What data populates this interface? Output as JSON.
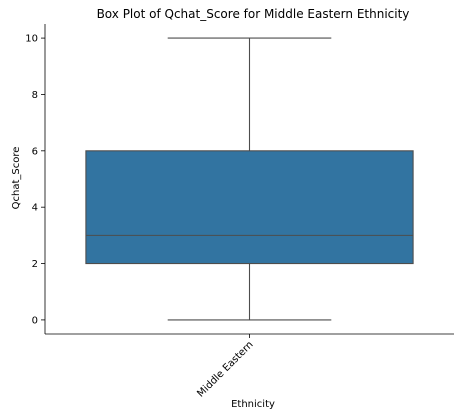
{
  "chart_data": {
    "type": "box",
    "title": "Box Plot of Qchat_Score for Middle Eastern Ethnicity",
    "xlabel": "Ethnicity",
    "ylabel": "Qchat_Score",
    "categories": [
      "Middle Eastern"
    ],
    "boxes": [
      {
        "category": "Middle Eastern",
        "whisker_low": 0,
        "q1": 2,
        "median": 3,
        "q3": 6,
        "whisker_high": 10
      }
    ],
    "ylim": [
      -0.5,
      10.5
    ],
    "yticks": [
      0,
      2,
      4,
      6,
      8,
      10
    ],
    "box_color": "#3274a1",
    "line_color": "#4d4d4d",
    "grid": false,
    "legend": "none"
  }
}
